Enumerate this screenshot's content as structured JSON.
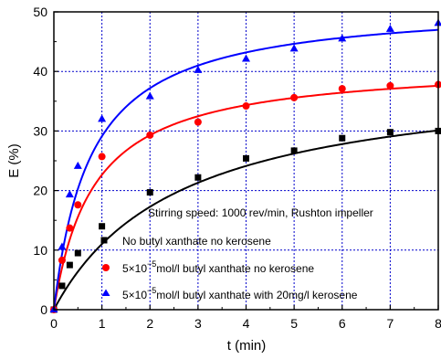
{
  "chart_data": {
    "type": "scatter",
    "xlabel": "t (min)",
    "ylabel": "E (%)",
    "xlim": [
      0,
      8
    ],
    "ylim": [
      0,
      50
    ],
    "x_ticks": [
      0,
      1,
      2,
      3,
      4,
      5,
      6,
      7,
      8
    ],
    "y_ticks": [
      0,
      10,
      20,
      30,
      40,
      50
    ],
    "grid": true,
    "annotation": "Stirring speed: 1000 rev/min, Rushton impeller",
    "legend": {
      "placement": "bottom-right",
      "entries": [
        {
          "pre": "No butyl xanthate no kerosene",
          "sup": "",
          "post": ""
        },
        {
          "pre": "5×10",
          "sup": "−5",
          "post": "mol/l  butyl xanthate no kerosene"
        },
        {
          "pre": "5×10",
          "sup": "−5",
          "post": "mol/l butyl xanthate with 20mg/l kerosene"
        }
      ]
    },
    "series": [
      {
        "marker": "square",
        "color": "#000000",
        "points": [
          [
            0,
            0
          ],
          [
            0.17,
            4
          ],
          [
            0.33,
            7.5
          ],
          [
            0.5,
            9.5
          ],
          [
            1,
            14
          ],
          [
            2,
            19.7
          ],
          [
            3,
            22.2
          ],
          [
            4,
            25.4
          ],
          [
            5,
            26.7
          ],
          [
            6,
            28.8
          ],
          [
            7,
            29.8
          ],
          [
            8,
            30
          ]
        ],
        "fit": {
          "Emax": 40,
          "k": 0.38
        }
      },
      {
        "marker": "circle",
        "color": "#ff0000",
        "points": [
          [
            0,
            0
          ],
          [
            0.17,
            8.3
          ],
          [
            0.33,
            13.7
          ],
          [
            0.5,
            17.6
          ],
          [
            1,
            25.7
          ],
          [
            2,
            29.3
          ],
          [
            3,
            31.5
          ],
          [
            4,
            34.2
          ],
          [
            5,
            35.6
          ],
          [
            6,
            37.1
          ],
          [
            7,
            37.6
          ],
          [
            8,
            37.8
          ]
        ],
        "fit": {
          "Emax": 41.5,
          "k": 1.2
        }
      },
      {
        "marker": "triangle",
        "color": "#0000ff",
        "points": [
          [
            0,
            0
          ],
          [
            0.17,
            10.5
          ],
          [
            0.33,
            19.3
          ],
          [
            0.5,
            24.1
          ],
          [
            1,
            32
          ],
          [
            2,
            35.8
          ],
          [
            3,
            40.2
          ],
          [
            4,
            42.1
          ],
          [
            5,
            43.8
          ],
          [
            6,
            45.5
          ],
          [
            7,
            47.1
          ],
          [
            8,
            48.1
          ]
        ],
        "fit": {
          "Emax": 51.5,
          "k": 1.3
        }
      }
    ]
  }
}
